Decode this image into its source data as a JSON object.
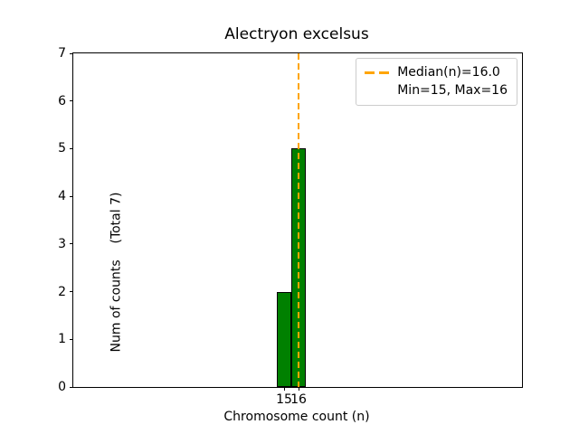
{
  "figure": {
    "background": "#ffffff"
  },
  "chart_data": {
    "type": "bar",
    "title": "Alectryon excelsus",
    "xlabel": "Chromosome count (n)",
    "ylabel": "Num of counts    (Total 7)",
    "categories": [
      15,
      16
    ],
    "values": [
      2,
      5
    ],
    "total_counts": 7,
    "ylim": [
      0,
      7
    ],
    "yticks": [
      0,
      1,
      2,
      3,
      4,
      5,
      6,
      7
    ],
    "xticks": [
      15,
      16
    ],
    "median_x": 16,
    "grid": false,
    "legend_position": "upper right",
    "legend_entries": [
      "Median(n)=16.0",
      "Min=15, Max=16"
    ],
    "colors": {
      "bar_fill": "#008000",
      "bar_edge": "#000000",
      "median_line": "#FFA500",
      "axis": "#000000",
      "legend_border": "#cccccc"
    }
  }
}
